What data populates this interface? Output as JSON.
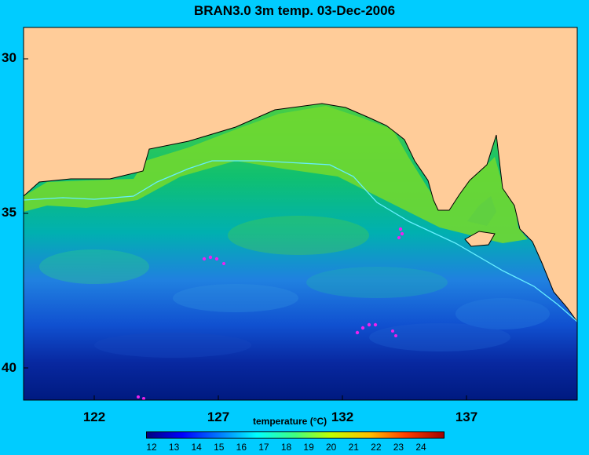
{
  "title": "BRAN3.0 3m temp. 03-Dec-2006",
  "y_ticks": [
    "30",
    "35",
    "40"
  ],
  "x_ticks": [
    "122",
    "127",
    "132",
    "137"
  ],
  "colorbar": {
    "label": "temperature (°C)",
    "ticks": [
      "12",
      "13",
      "14",
      "15",
      "16",
      "17",
      "18",
      "19",
      "20",
      "21",
      "22",
      "23",
      "24"
    ]
  },
  "colors": {
    "background": "#00ccff",
    "land": "#ffcc99",
    "contour": "#66eeff",
    "islands": "#ee22ee"
  }
}
